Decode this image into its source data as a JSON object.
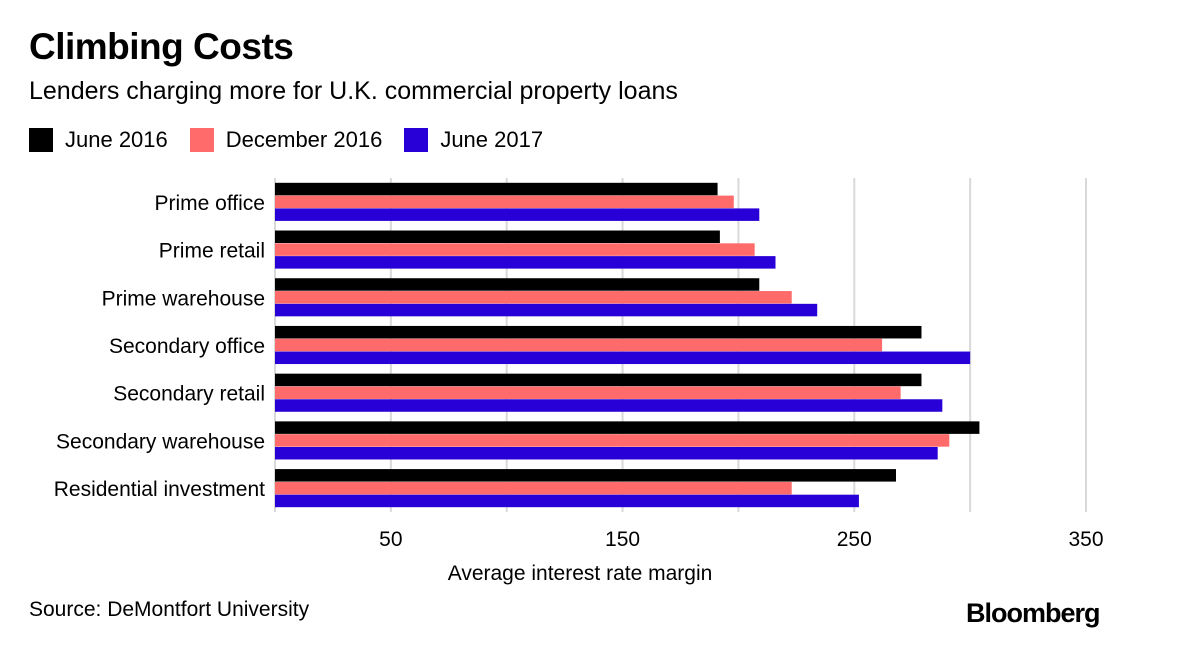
{
  "title": "Climbing Costs",
  "subtitle": "Lenders charging more for U.K. commercial property loans",
  "source": "Source: DeMontfort University",
  "logo": "Bloomberg",
  "chart_data": {
    "type": "bar",
    "orientation": "horizontal",
    "title": "Climbing Costs",
    "subtitle": "Lenders charging more for U.K. commercial property loans",
    "xlabel": "Average interest rate margin",
    "ylabel": "",
    "categories": [
      "Prime office",
      "Prime retail",
      "Prime warehouse",
      "Secondary office",
      "Secondary retail",
      "Secondary warehouse",
      "Residential investment"
    ],
    "series": [
      {
        "name": "June 2016",
        "color": "#000000",
        "values": [
          191,
          192,
          209,
          279,
          279,
          304,
          268
        ]
      },
      {
        "name": "December 2016",
        "color": "#ff6b6b",
        "values": [
          198,
          207,
          223,
          262,
          270,
          291,
          223
        ]
      },
      {
        "name": "June 2017",
        "color": "#2800d7",
        "values": [
          209,
          216,
          234,
          300,
          288,
          286,
          252
        ]
      }
    ],
    "xlim": [
      0,
      350
    ],
    "xticks": [
      50,
      150,
      250,
      350
    ],
    "grid": true,
    "legend": "top-left"
  }
}
